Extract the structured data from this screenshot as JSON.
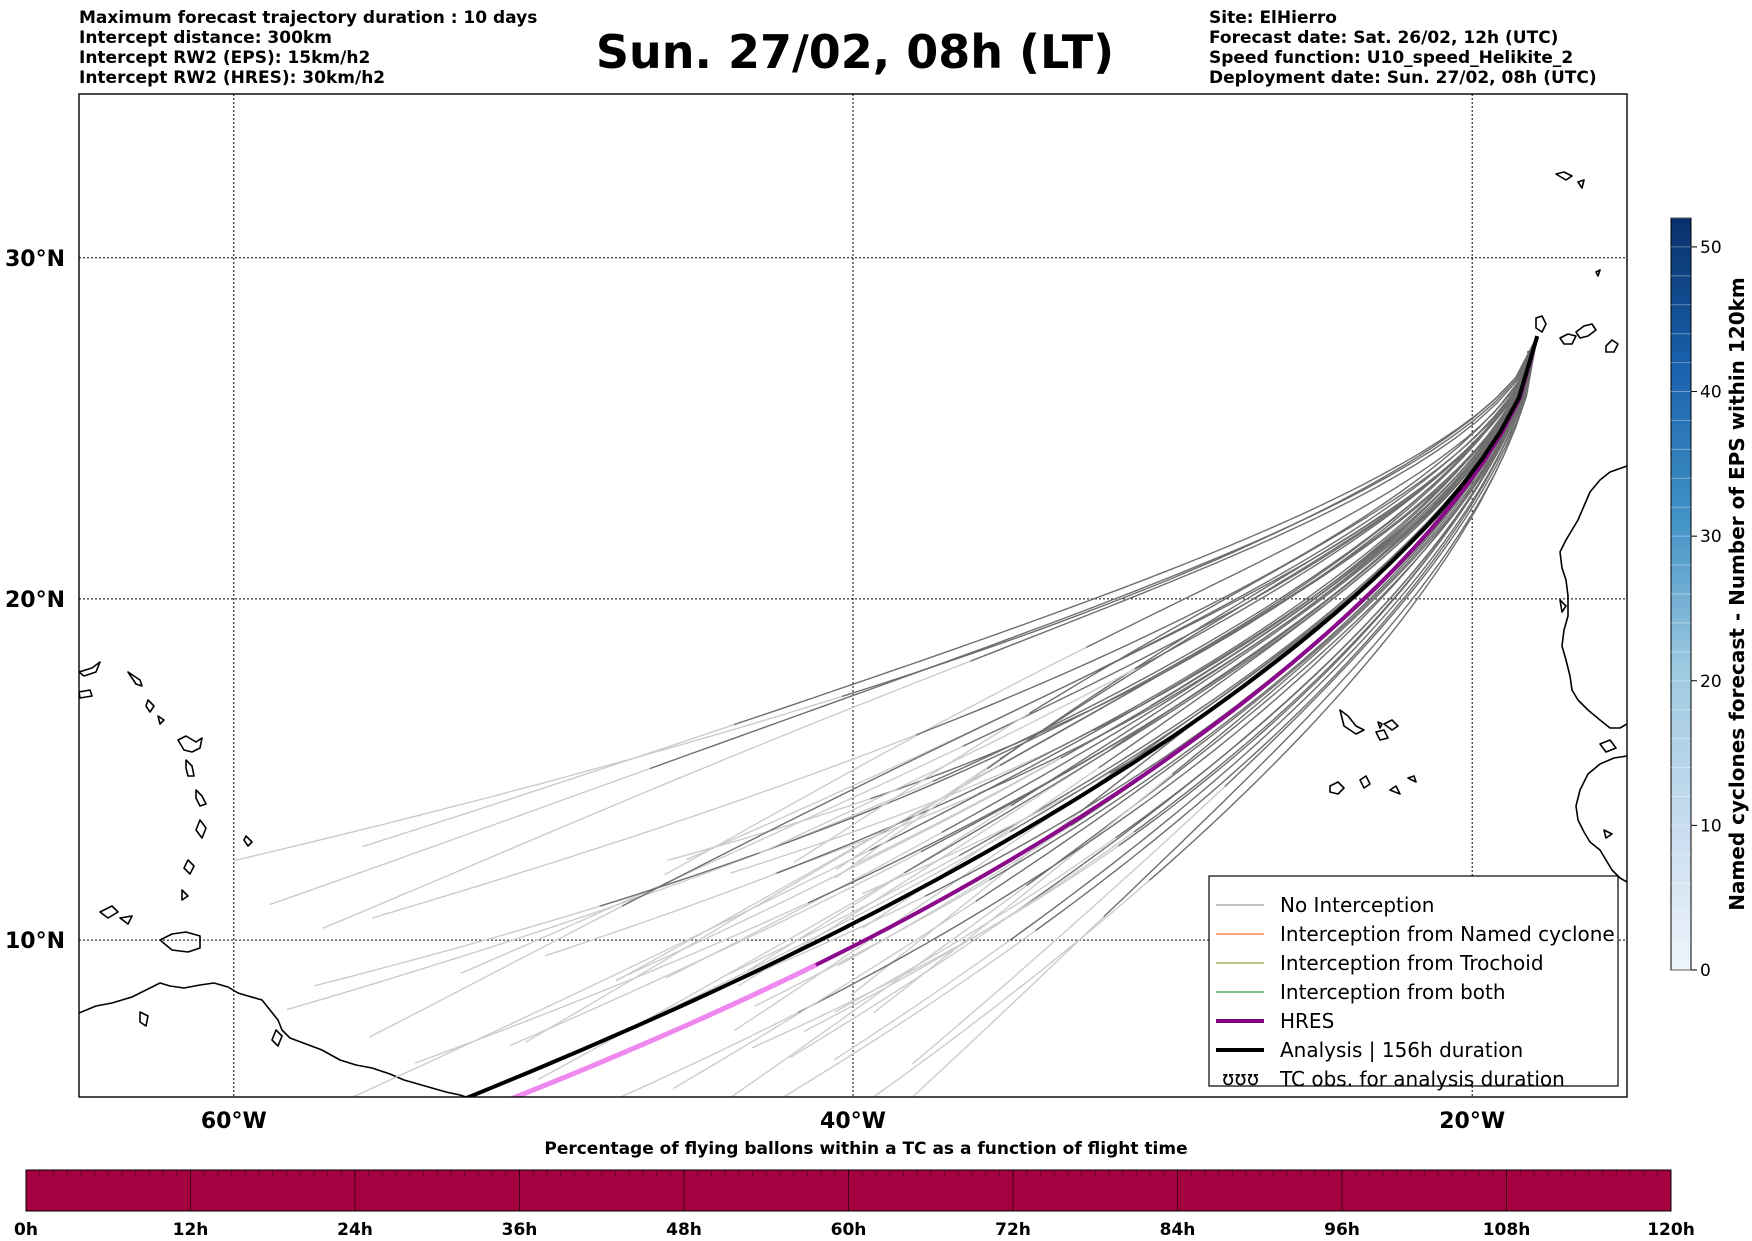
{
  "info_left": [
    "Maximum forecast trajectory duration : 10 days",
    "Intercept distance: 300km",
    "Intercept RW2 (EPS):  15km/h2",
    "Intercept RW2 (HRES): 30km/h2"
  ],
  "title": "Sun. 27/02, 08h (LT)",
  "info_right": [
    "Site: ElHierro",
    "Forecast date: Sat. 26/02, 12h (UTC)",
    "Speed function: U10_speed_Helikite_2",
    "Deployment date: Sun. 27/02, 08h (UTC)"
  ],
  "map": {
    "lon_range": [
      -65,
      -15
    ],
    "lat_range": [
      5.4,
      34.8
    ],
    "lon_ticks": [
      -60,
      -40,
      -20
    ],
    "lon_tick_labels": [
      "60°W",
      "40°W",
      "20°W"
    ],
    "lat_ticks": [
      10,
      20,
      30
    ],
    "lat_tick_labels": [
      "10°N",
      "20°N",
      "30°N"
    ],
    "site": {
      "name": "ElHierro",
      "lon": -17.9,
      "lat": 27.7
    },
    "colors": {
      "ensemble": "#6e6e6e",
      "ensemble_faded": "#cccccc",
      "hres": "#8b0a8b",
      "hres_faded": "#ee88ee",
      "analysis": "#000000",
      "coast": "#000000"
    }
  },
  "legend": {
    "items": [
      {
        "label": "No Interception",
        "color": "#808080",
        "width": 1
      },
      {
        "label": "Interception from Named cyclone",
        "color": "#ff4500",
        "width": 1
      },
      {
        "label": "Interception from Trochoid",
        "color": "#808000",
        "width": 1
      },
      {
        "label": "Interception from both",
        "color": "#008000",
        "width": 1
      },
      {
        "label": "HRES",
        "color": "#800080",
        "width": 4
      },
      {
        "label": "Analysis | 156h duration",
        "color": "#000000",
        "width": 4
      },
      {
        "label": "TC obs. for analysis duration",
        "color": "#000000",
        "width": 0,
        "symbol": "ʊʊʊ"
      }
    ]
  },
  "colorbar_right": {
    "label": "Named cyclones forecast - Number of EPS within 120km",
    "ticks": [
      "0",
      "10",
      "20",
      "30",
      "40",
      "50"
    ],
    "tick_values": [
      0,
      10,
      20,
      30,
      40,
      50
    ],
    "max": 52,
    "color_low": "#e8f0f9",
    "color_high": "#08306b"
  },
  "bottom_bar": {
    "title": "Percentage of flying ballons within a TC as a function of flight time",
    "ticks": [
      "0h",
      "12h",
      "24h",
      "36h",
      "48h",
      "60h",
      "72h",
      "84h",
      "96h",
      "108h",
      "120h"
    ],
    "fill_color": "#a50040",
    "segments": 120
  }
}
